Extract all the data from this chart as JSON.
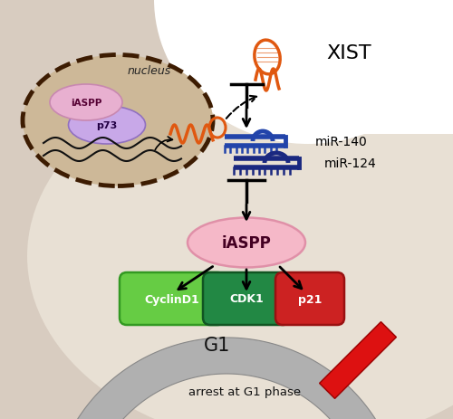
{
  "labels": {
    "nucleus": "nucleus",
    "xist": "XIST",
    "mir140": "miR-140",
    "mir124": "miR-124",
    "iaspp_main": "iASPP",
    "cyclinD1": "CyclinD1",
    "cdk1": "CDK1",
    "p21": "p21",
    "g1": "G1",
    "arrest": "arrest at G1 phase",
    "iaspp_nucleus": "iASPP",
    "p73": "p73"
  },
  "colors": {
    "nucleus_dash": "#3d1c02",
    "mir_blue": "#2244aa",
    "mir_blue2": "#1a2880",
    "iaspp_pink_face": "#f5b8c8",
    "iaspp_pink_edge": "#e090a8",
    "iaspp_nuc_face": "#e8b0d0",
    "iaspp_nuc_edge": "#c888b0",
    "p73_face": "#c8a8e8",
    "p73_edge": "#9070c0",
    "cyclinD1_green": "#66cc44",
    "cyclinD1_edge": "#339922",
    "cdk1_darkgreen": "#228844",
    "cdk1_edge": "#115522",
    "p21_red": "#cc2222",
    "p21_edge": "#991111",
    "xist_orange": "#e05810",
    "arrow_color": "#111111",
    "cell_bg": "#d8ccc0",
    "cell_bottom_bg": "#e8e0d8",
    "nucleus_fill": "#c8b498",
    "g1_gray": "#a0a0a0",
    "g1_edge": "#787878",
    "stop_red": "#dd1111"
  }
}
